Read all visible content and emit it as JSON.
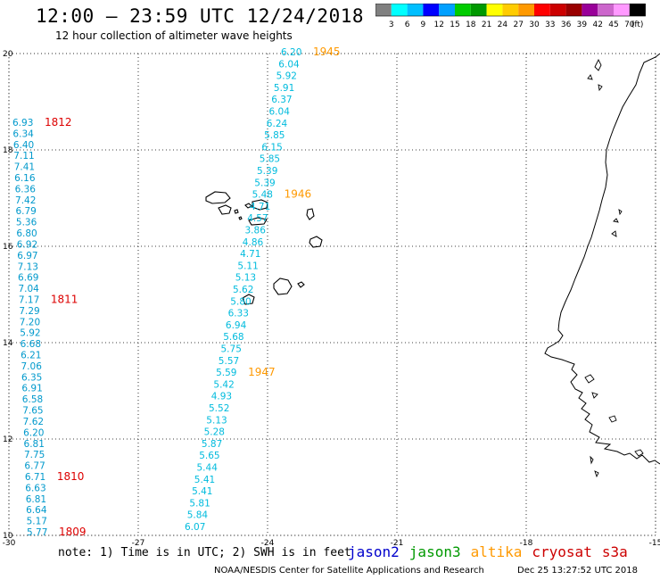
{
  "title": "12:00 – 23:59 UTC 12/24/2018",
  "subtitle": "12 hour collection of altimeter wave heights",
  "legend": {
    "unit": "(ft)",
    "colors": [
      "#808080",
      "#00ffff",
      "#00bfff",
      "#0000ff",
      "#00a0ff",
      "#00cc00",
      "#009900",
      "#ffff00",
      "#ffcc00",
      "#ff9900",
      "#ff0000",
      "#cc0000",
      "#990000",
      "#990099",
      "#cc66cc",
      "#ff99ff",
      "#000000"
    ],
    "labels": [
      "3",
      "6",
      "9",
      "12",
      "15",
      "18",
      "21",
      "24",
      "27",
      "30",
      "33",
      "36",
      "39",
      "42",
      "45",
      "70"
    ]
  },
  "note": "note: 1) Time is in UTC; 2) SWH is in feet",
  "satellites": [
    {
      "name": "jason2",
      "color": "#0000cc"
    },
    {
      "name": "jason3",
      "color": "#009900"
    },
    {
      "name": "altika",
      "color": "#ff9900"
    },
    {
      "name": "cryosat",
      "color": "#cc0000"
    },
    {
      "name": "s3a",
      "color": "#cc0000"
    }
  ],
  "credit": "NOAA/NESDIS Center for Satellite Applications and Research",
  "stamp": "Dec 25 13:27:52 UTC 2018",
  "axes": {
    "lon_ticks": [
      "-30",
      "-27",
      "-24",
      "-21",
      "-18",
      "-15"
    ],
    "lat_ticks": [
      "20",
      "18",
      "16",
      "14",
      "12",
      "10"
    ],
    "lon_range": [
      -30,
      -15
    ],
    "lat_range": [
      10,
      20
    ],
    "grid": "dotted"
  },
  "track_west": {
    "color": "#0099cc",
    "values": [
      "6.93",
      "6.34",
      "6.40",
      "7.11",
      "7.41",
      "6.16",
      "6.36",
      "7.42",
      "6.79",
      "5.36",
      "6.80",
      "6.92",
      "6.97",
      "7.13",
      "6.69",
      "7.04",
      "7.17",
      "7.29",
      "7.20",
      "5.92",
      "6.68",
      "6.21",
      "7.06",
      "6.35",
      "6.91",
      "6.58",
      "7.65",
      "7.62",
      "6.20",
      "6.81",
      "7.75",
      "6.77",
      "6.71",
      "6.63",
      "6.81",
      "6.64",
      "5.17",
      "5.77"
    ],
    "time_labels": [
      {
        "text": "1812",
        "index": 0
      },
      {
        "text": "1811",
        "index": 16
      },
      {
        "text": "1810",
        "index": 32
      },
      {
        "text": "1809",
        "index": 37
      }
    ],
    "time_color": "#dd0000"
  },
  "track_east": {
    "color": "#00bbdd",
    "values": [
      "6.20",
      "6.04",
      "5.92",
      "5.91",
      "6.37",
      "6.04",
      "6.24",
      "5.85",
      "6.15",
      "5.85",
      "5.39",
      "5.39",
      "5.48",
      "4.71",
      "4.57",
      "3.86",
      "4.86",
      "4.71",
      "5.11",
      "5.13",
      "5.62",
      "5.80",
      "6.33",
      "6.94",
      "5.68",
      "5.75",
      "5.57",
      "5.59",
      "5.42",
      "4.93",
      "5.52",
      "5.13",
      "5.28",
      "5.87",
      "5.65",
      "5.44",
      "5.41",
      "5.41",
      "5.81",
      "5.84",
      "6.07"
    ],
    "time_labels": [
      {
        "text": "1945",
        "index": 0
      },
      {
        "text": "1946",
        "index": 12
      },
      {
        "text": "1947",
        "index": 27
      }
    ],
    "time_color": "#ff9900"
  }
}
